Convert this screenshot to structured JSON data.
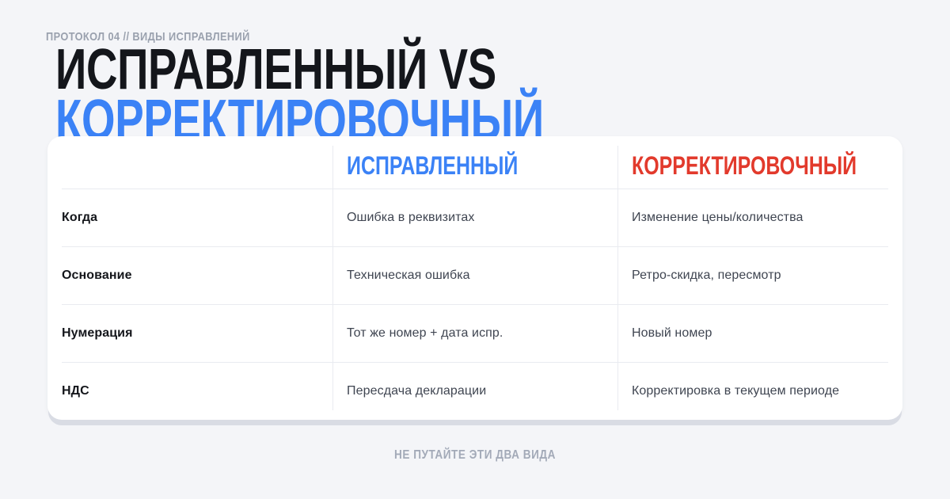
{
  "colors": {
    "background": "#f4f5f8",
    "card": "#ffffff",
    "accent_blue": "#3b82f6",
    "accent_red": "#e23a2c",
    "title_dark": "#14161b",
    "muted_gray": "#9aa1ae",
    "divider": "#e9ebf0"
  },
  "kicker": "ПРОТОКОЛ 04 // ВИДЫ ИСПРАВЛЕНИЙ",
  "title": {
    "line1": "ИСПРАВЛЕННЫЙ VS",
    "line2": "КОРРЕКТИРОВОЧНЫЙ"
  },
  "table": {
    "columns": [
      {
        "label": "ИСПРАВЛЕННЫЙ",
        "color": "#3b82f6"
      },
      {
        "label": "КОРРЕКТИРОВОЧНЫЙ",
        "color": "#e23a2c"
      }
    ],
    "rows": [
      {
        "label": "Когда",
        "corrected": "Ошибка в реквизитах",
        "adjustment": "Изменение цены/количества"
      },
      {
        "label": "Основание",
        "corrected": "Техническая ошибка",
        "adjustment": "Ретро-скидка, пересмотр"
      },
      {
        "label": "Нумерация",
        "corrected": "Тот же номер + дата испр.",
        "adjustment": "Новый номер"
      },
      {
        "label": "НДС",
        "corrected": "Пересдача декларации",
        "adjustment": "Корректировка в текущем периоде"
      }
    ]
  },
  "footer": "НЕ ПУТАЙТЕ ЭТИ ДВА ВИДА"
}
